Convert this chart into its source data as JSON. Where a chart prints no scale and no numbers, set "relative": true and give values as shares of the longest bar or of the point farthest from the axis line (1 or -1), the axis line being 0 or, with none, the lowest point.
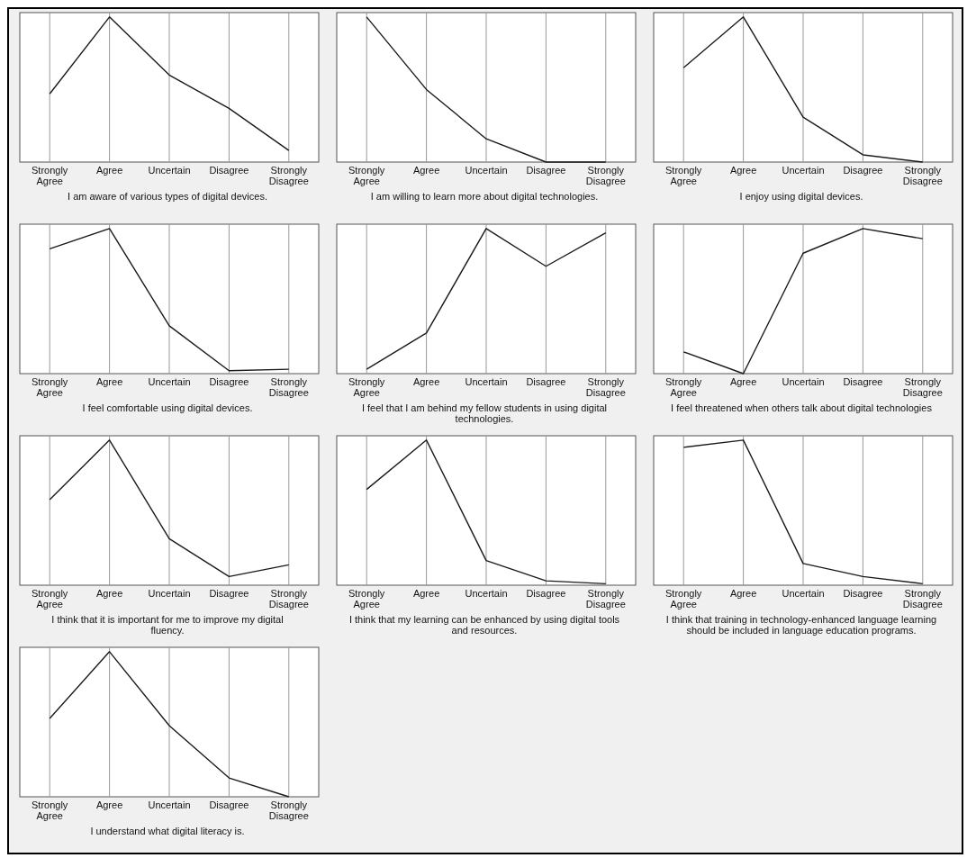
{
  "chart_data": [
    {
      "type": "line",
      "relative": true,
      "grid": "x",
      "color": "#1a1a1a",
      "categories": [
        "Strongly Agree",
        "Agree",
        "Uncertain",
        "Disagree",
        "Strongly Disagree"
      ],
      "values": [
        0.47,
        1,
        0.6,
        0.37,
        0.08
      ],
      "xlabel": "I am aware of various types of digital devices."
    },
    {
      "type": "line",
      "relative": true,
      "grid": "x",
      "color": "#1a1a1a",
      "categories": [
        "Strongly Agree",
        "Agree",
        "Uncertain",
        "Disagree",
        "Strongly Disagree"
      ],
      "values": [
        1,
        0.5,
        0.16,
        0,
        0
      ],
      "xlabel": "I am willing to learn more about digital technologies."
    },
    {
      "type": "line",
      "relative": true,
      "grid": "x",
      "color": "#1a1a1a",
      "categories": [
        "Strongly Agree",
        "Agree",
        "Uncertain",
        "Disagree",
        "Strongly Disagree"
      ],
      "values": [
        0.65,
        1,
        0.31,
        0.05,
        0
      ],
      "xlabel": "I enjoy using digital devices."
    },
    {
      "type": "line",
      "relative": true,
      "grid": "x",
      "color": "#1a1a1a",
      "categories": [
        "Strongly Agree",
        "Agree",
        "Uncertain",
        "Disagree",
        "Strongly Disagree"
      ],
      "values": [
        0.86,
        1,
        0.33,
        0.02,
        0.03
      ],
      "xlabel": "I feel comfortable using digital devices."
    },
    {
      "type": "line",
      "relative": true,
      "grid": "x",
      "color": "#1a1a1a",
      "categories": [
        "Strongly Agree",
        "Agree",
        "Uncertain",
        "Disagree",
        "Strongly Disagree"
      ],
      "values": [
        0.03,
        0.28,
        1,
        0.74,
        0.97
      ],
      "xlabel": "I feel that I am behind my fellow students in using digital technologies."
    },
    {
      "type": "line",
      "relative": true,
      "grid": "x",
      "color": "#1a1a1a",
      "categories": [
        "Strongly Agree",
        "Agree",
        "Uncertain",
        "Disagree",
        "Strongly Disagree"
      ],
      "values": [
        0.15,
        0,
        0.83,
        1,
        0.93
      ],
      "xlabel": "I feel threatened when others talk about digital technologies"
    },
    {
      "type": "line",
      "relative": true,
      "grid": "x",
      "color": "#1a1a1a",
      "categories": [
        "Strongly Agree",
        "Agree",
        "Uncertain",
        "Disagree",
        "Strongly Disagree"
      ],
      "values": [
        0.59,
        1,
        0.32,
        0.06,
        0.14
      ],
      "xlabel": "I think that it is important for me to improve my digital fluency."
    },
    {
      "type": "line",
      "relative": true,
      "grid": "x",
      "color": "#1a1a1a",
      "categories": [
        "Strongly Agree",
        "Agree",
        "Uncertain",
        "Disagree",
        "Strongly Disagree"
      ],
      "values": [
        0.66,
        1,
        0.17,
        0.03,
        0.01
      ],
      "xlabel": "I think that my learning can be enhanced by using digital tools and resources."
    },
    {
      "type": "line",
      "relative": true,
      "grid": "x",
      "color": "#1a1a1a",
      "categories": [
        "Strongly Agree",
        "Agree",
        "Uncertain",
        "Disagree",
        "Strongly Disagree"
      ],
      "values": [
        0.95,
        1,
        0.15,
        0.06,
        0.01
      ],
      "xlabel": "I think that training in technology-enhanced language learning should be included in language education programs."
    },
    {
      "type": "line",
      "relative": true,
      "grid": "x",
      "color": "#1a1a1a",
      "categories": [
        "Strongly Agree",
        "Agree",
        "Uncertain",
        "Disagree",
        "Strongly Disagree"
      ],
      "values": [
        0.54,
        1,
        0.49,
        0.13,
        0
      ],
      "xlabel": "I understand what digital literacy is."
    }
  ]
}
